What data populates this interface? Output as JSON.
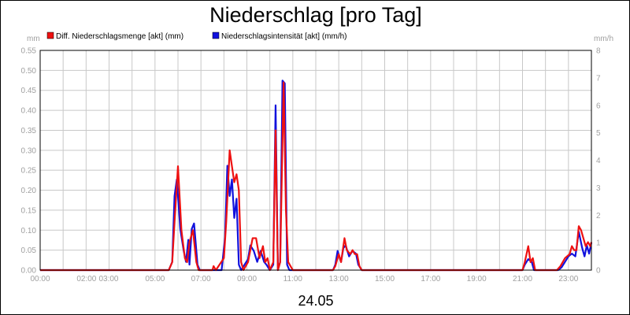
{
  "chart_data": {
    "type": "line",
    "title": "Niederschlag [pro Tag]",
    "date_label": "24.05",
    "y_left_unit": "mm",
    "y_right_unit": "mm/h",
    "y_left_lim": [
      0,
      0.55
    ],
    "y_right_lim": [
      0,
      8
    ],
    "y_left_ticks": [
      "0.00",
      "0.05",
      "0.10",
      "0.15",
      "0.20",
      "0.25",
      "0.30",
      "0.35",
      "0.40",
      "0.45",
      "0.50",
      "0.55"
    ],
    "y_right_ticks": [
      "0",
      "1",
      "2",
      "3",
      "4",
      "5",
      "6",
      "7",
      "8"
    ],
    "x_lim": [
      0,
      24
    ],
    "x_ticks": [
      {
        "label": "00:00",
        "x": 0
      },
      {
        "label": "02:00",
        "x": 2
      },
      {
        "label": "03:00",
        "x": 3
      },
      {
        "label": "05:00",
        "x": 5
      },
      {
        "label": "07:00",
        "x": 7
      },
      {
        "label": "09:00",
        "x": 9
      },
      {
        "label": "11:00",
        "x": 11
      },
      {
        "label": "13:00",
        "x": 13
      },
      {
        "label": "15:00",
        "x": 15
      },
      {
        "label": "17:00",
        "x": 17
      },
      {
        "label": "19:00",
        "x": 19
      },
      {
        "label": "21:00",
        "x": 21
      },
      {
        "label": "23:00",
        "x": 23
      }
    ],
    "grid": true,
    "legend_position": "top-left",
    "series": [
      {
        "name": "Diff. Niederschlagsmenge [akt] (mm)",
        "color": "#ee1111",
        "axis": "left",
        "points": [
          [
            0,
            0
          ],
          [
            5.6,
            0
          ],
          [
            5.75,
            0.02
          ],
          [
            5.85,
            0.12
          ],
          [
            6.0,
            0.26
          ],
          [
            6.15,
            0.1
          ],
          [
            6.3,
            0.03
          ],
          [
            6.4,
            0.02
          ],
          [
            6.5,
            0.07
          ],
          [
            6.65,
            0.1
          ],
          [
            6.8,
            0.02
          ],
          [
            6.9,
            0
          ],
          [
            7.5,
            0
          ],
          [
            7.55,
            0.01
          ],
          [
            7.65,
            0
          ],
          [
            8.0,
            0.03
          ],
          [
            8.1,
            0.12
          ],
          [
            8.25,
            0.3
          ],
          [
            8.35,
            0.26
          ],
          [
            8.45,
            0.22
          ],
          [
            8.55,
            0.24
          ],
          [
            8.65,
            0.2
          ],
          [
            8.75,
            0.02
          ],
          [
            8.85,
            0
          ],
          [
            9.05,
            0.02
          ],
          [
            9.25,
            0.08
          ],
          [
            9.4,
            0.08
          ],
          [
            9.55,
            0.03
          ],
          [
            9.7,
            0.06
          ],
          [
            9.8,
            0.02
          ],
          [
            9.9,
            0.03
          ],
          [
            10.0,
            0
          ],
          [
            10.15,
            0.02
          ],
          [
            10.25,
            0.35
          ],
          [
            10.35,
            0
          ],
          [
            10.45,
            0.02
          ],
          [
            10.6,
            0.47
          ],
          [
            10.7,
            0.15
          ],
          [
            10.8,
            0.02
          ],
          [
            11.0,
            0
          ],
          [
            12.75,
            0
          ],
          [
            12.85,
            0.01
          ],
          [
            13.0,
            0.04
          ],
          [
            13.1,
            0.02
          ],
          [
            13.25,
            0.08
          ],
          [
            13.35,
            0.05
          ],
          [
            13.5,
            0.04
          ],
          [
            13.6,
            0.05
          ],
          [
            13.7,
            0.04
          ],
          [
            13.8,
            0.04
          ],
          [
            13.9,
            0.01
          ],
          [
            14.0,
            0
          ],
          [
            21.0,
            0
          ],
          [
            21.1,
            0.02
          ],
          [
            21.25,
            0.06
          ],
          [
            21.35,
            0.02
          ],
          [
            21.45,
            0.03
          ],
          [
            21.55,
            0
          ],
          [
            22.5,
            0
          ],
          [
            22.65,
            0.01
          ],
          [
            22.85,
            0.03
          ],
          [
            23.05,
            0.04
          ],
          [
            23.15,
            0.06
          ],
          [
            23.25,
            0.05
          ],
          [
            23.35,
            0.05
          ],
          [
            23.45,
            0.11
          ],
          [
            23.55,
            0.1
          ],
          [
            23.65,
            0.08
          ],
          [
            23.75,
            0.06
          ],
          [
            23.85,
            0.07
          ],
          [
            23.95,
            0.06
          ],
          [
            24.0,
            0.07
          ]
        ]
      },
      {
        "name": "Niederschlagsintensität [akt] (mm/h)",
        "color": "#1111dd",
        "axis": "right",
        "points": [
          [
            0,
            0
          ],
          [
            5.6,
            0
          ],
          [
            5.75,
            0.3
          ],
          [
            5.85,
            2.7
          ],
          [
            5.95,
            3.3
          ],
          [
            6.1,
            1.5
          ],
          [
            6.25,
            0.7
          ],
          [
            6.35,
            0.3
          ],
          [
            6.45,
            1.1
          ],
          [
            6.5,
            0.2
          ],
          [
            6.6,
            1.5
          ],
          [
            6.7,
            1.7
          ],
          [
            6.85,
            0.2
          ],
          [
            6.95,
            0
          ],
          [
            7.9,
            0
          ],
          [
            8.05,
            1.2
          ],
          [
            8.15,
            3.8
          ],
          [
            8.25,
            2.7
          ],
          [
            8.35,
            3.3
          ],
          [
            8.45,
            1.9
          ],
          [
            8.55,
            2.6
          ],
          [
            8.65,
            0.2
          ],
          [
            8.75,
            0
          ],
          [
            9.05,
            0.4
          ],
          [
            9.15,
            0.9
          ],
          [
            9.3,
            0.7
          ],
          [
            9.45,
            0.3
          ],
          [
            9.6,
            0.7
          ],
          [
            9.75,
            0.3
          ],
          [
            9.85,
            0.2
          ],
          [
            10.0,
            0
          ],
          [
            10.15,
            0.2
          ],
          [
            10.25,
            6.0
          ],
          [
            10.35,
            0
          ],
          [
            10.45,
            0.3
          ],
          [
            10.55,
            6.9
          ],
          [
            10.65,
            6.8
          ],
          [
            10.75,
            0.2
          ],
          [
            10.85,
            0
          ],
          [
            12.75,
            0
          ],
          [
            12.85,
            0.2
          ],
          [
            12.95,
            0.7
          ],
          [
            13.1,
            0.3
          ],
          [
            13.2,
            0.8
          ],
          [
            13.3,
            0.9
          ],
          [
            13.45,
            0.5
          ],
          [
            13.6,
            0.7
          ],
          [
            13.75,
            0.6
          ],
          [
            13.85,
            0.2
          ],
          [
            14.0,
            0
          ],
          [
            21.0,
            0
          ],
          [
            21.1,
            0.2
          ],
          [
            21.25,
            0.4
          ],
          [
            21.4,
            0.3
          ],
          [
            21.5,
            0
          ],
          [
            22.55,
            0
          ],
          [
            22.7,
            0.1
          ],
          [
            22.85,
            0.3
          ],
          [
            23.0,
            0.5
          ],
          [
            23.15,
            0.6
          ],
          [
            23.3,
            0.5
          ],
          [
            23.45,
            1.4
          ],
          [
            23.6,
            0.8
          ],
          [
            23.7,
            0.5
          ],
          [
            23.8,
            0.9
          ],
          [
            23.9,
            0.6
          ],
          [
            24.0,
            1.0
          ]
        ]
      }
    ]
  }
}
